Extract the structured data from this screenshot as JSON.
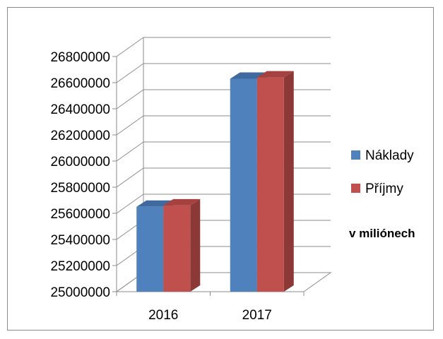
{
  "chart_data": {
    "type": "bar",
    "categories": [
      "2016",
      "2017"
    ],
    "series": [
      {
        "name": "Náklady",
        "values": [
          25650000,
          26630000
        ],
        "color": "#4f81bd",
        "side_color": "#385d8a",
        "top_color": "#3e6a9f"
      },
      {
        "name": "Příjmy",
        "values": [
          25660000,
          26640000
        ],
        "color": "#c0504d",
        "side_color": "#8c3836",
        "top_color": "#a5423f"
      }
    ],
    "ylim": [
      25000000,
      26800000
    ],
    "yticks": [
      "25000000",
      "25200000",
      "25400000",
      "25600000",
      "25800000",
      "26000000",
      "26200000",
      "26400000",
      "26600000",
      "26800000"
    ],
    "grid": true,
    "legend_position": "right",
    "note": "v miliónech",
    "style": "3d-clustered-column"
  }
}
